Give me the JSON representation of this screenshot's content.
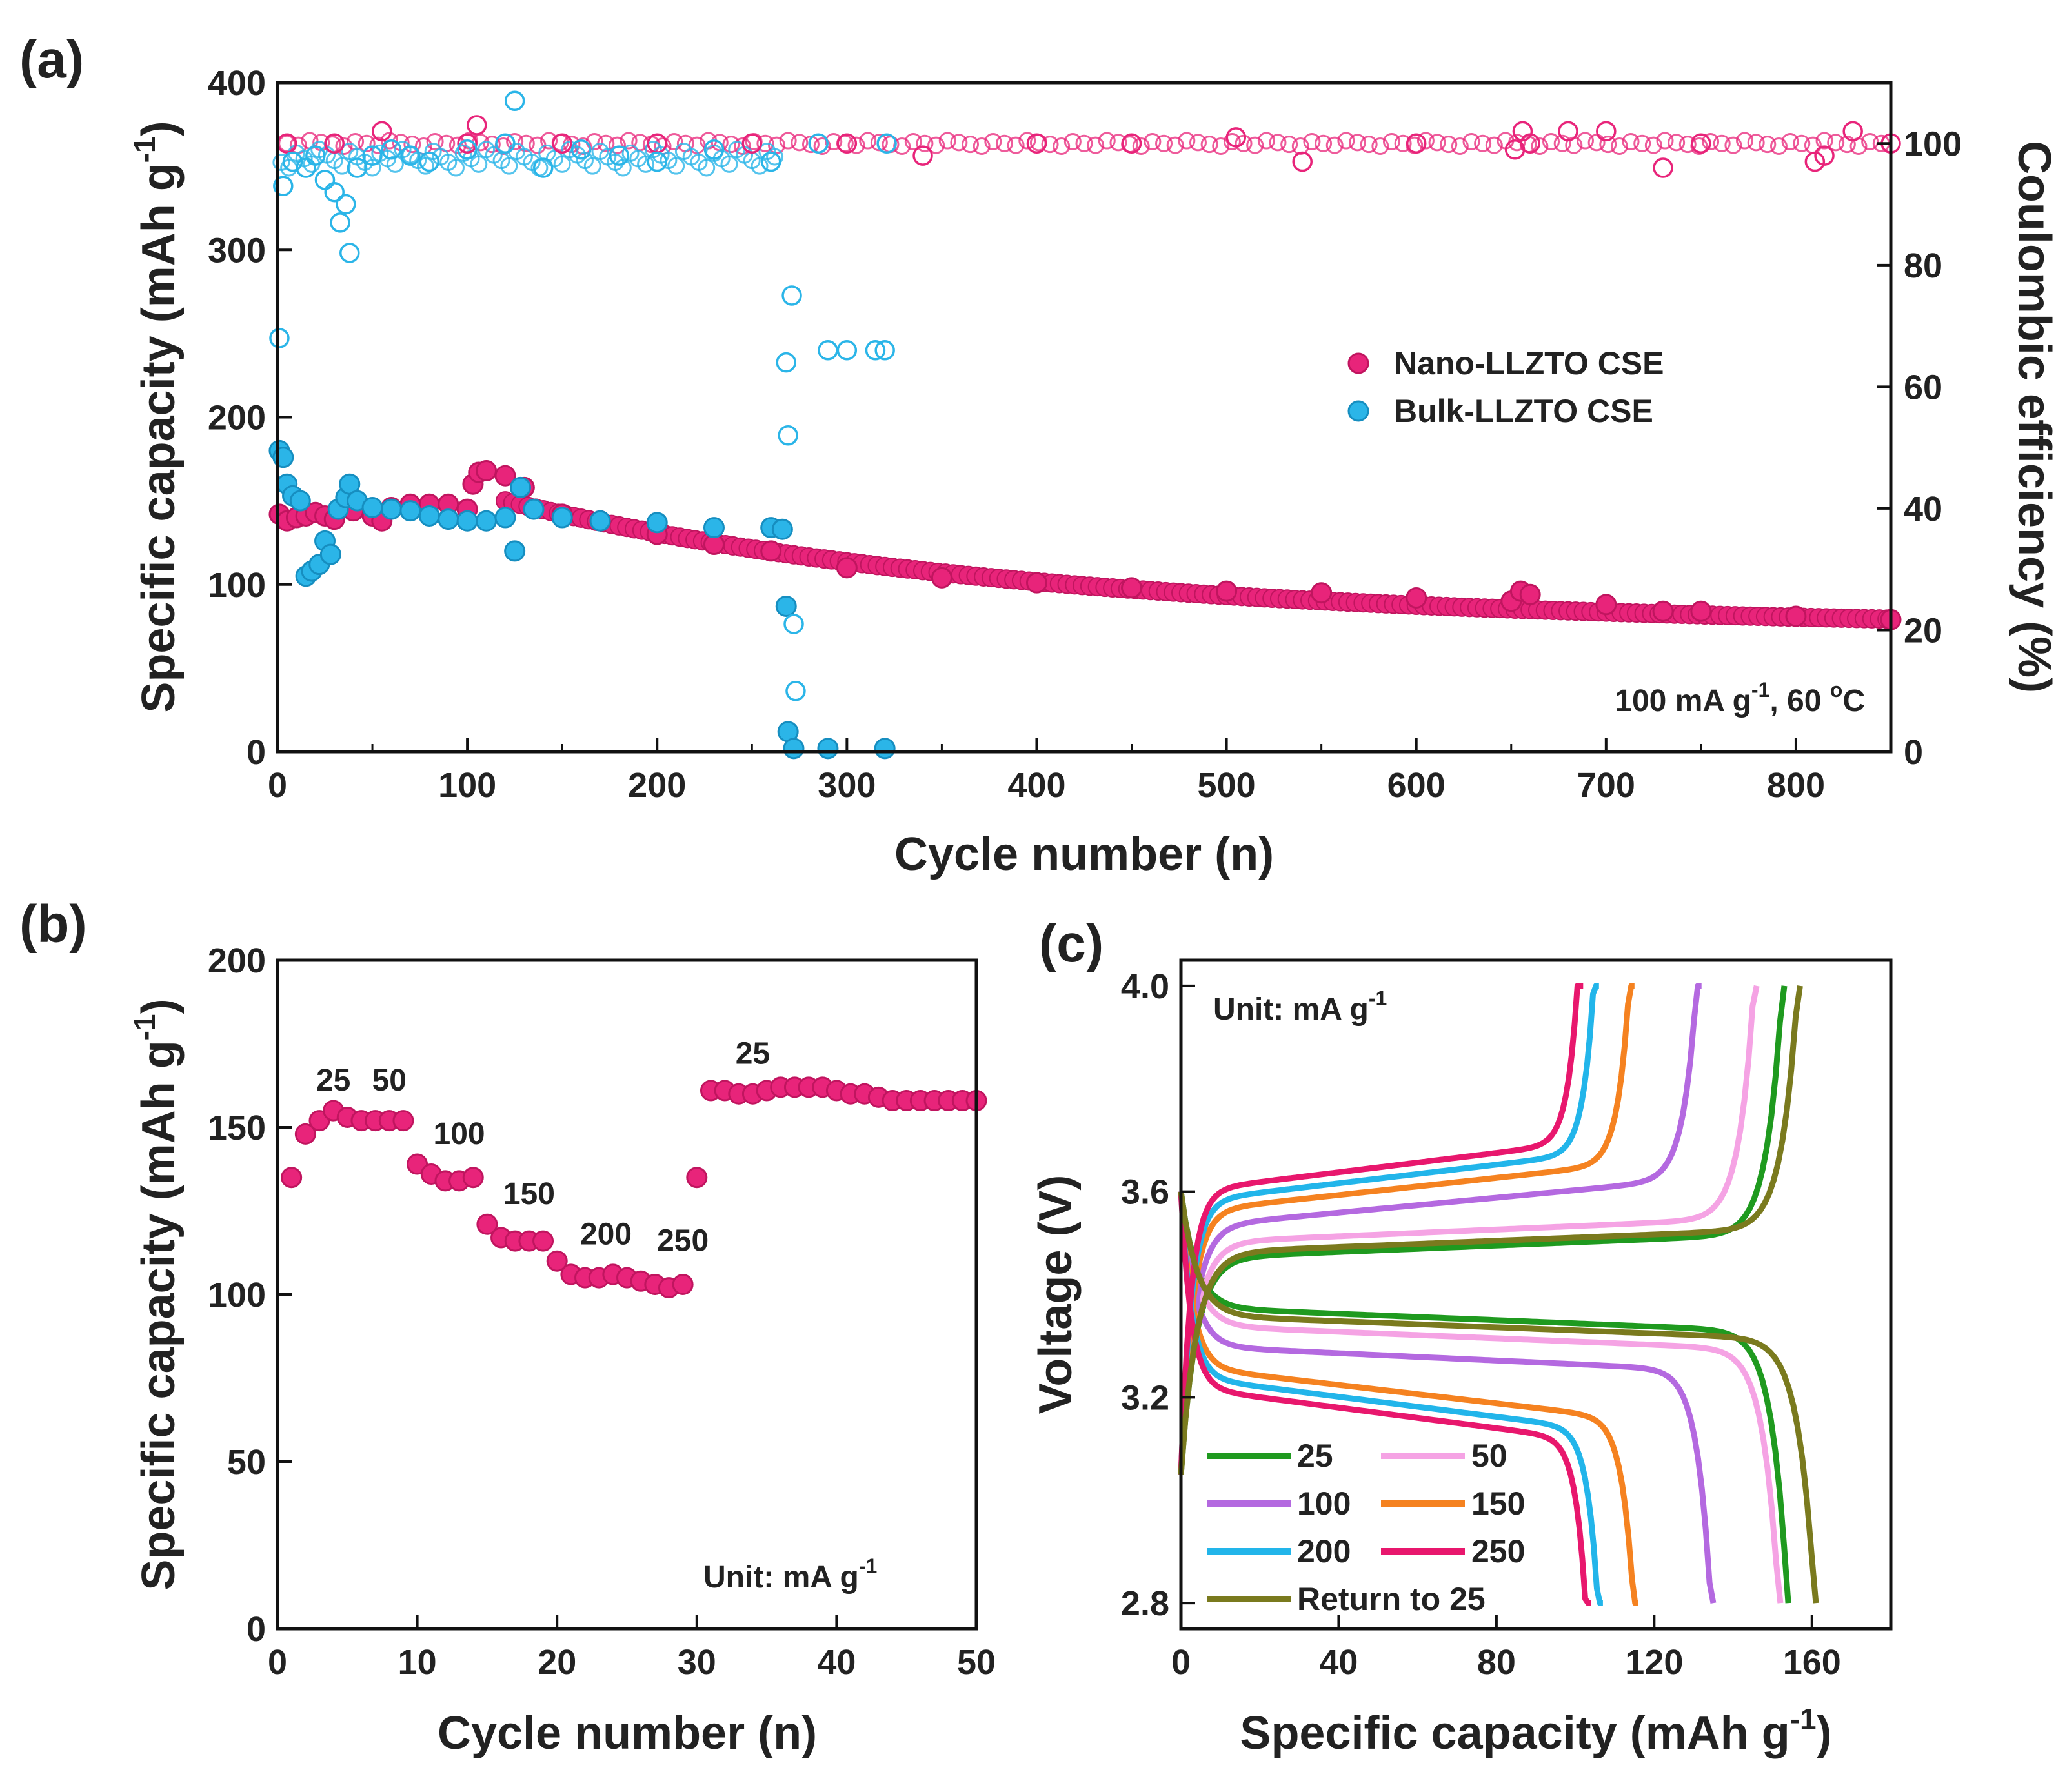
{
  "chart_data": [
    {
      "panel": "(a)",
      "type": "scatter",
      "xlabel": "Cycle number (n)",
      "ylabel": "Specific capacity (mAh g-1)",
      "ylabel_main": "Specific capacity (mAh g",
      "ylabel_sup": "-1",
      "ylabel_close": ")",
      "y2label": "Coulombic efficiency (%)",
      "xlim": [
        0,
        850
      ],
      "ylim": [
        0,
        400
      ],
      "y2lim": [
        0,
        110
      ],
      "xticks": [
        "0",
        "100",
        "200",
        "300",
        "400",
        "500",
        "600",
        "700",
        "800"
      ],
      "yticks": [
        "0",
        "100",
        "200",
        "300",
        "400"
      ],
      "y2ticks": [
        "0",
        "20",
        "40",
        "60",
        "80",
        "100"
      ],
      "legend": [
        "Nano-LLZTO CSE",
        "Bulk-LLZTO CSE"
      ],
      "annotation": "100 mA g-1, 60 °C",
      "annotation_parts": [
        "100 mA g",
        "-1",
        ", 60 ",
        "o",
        "C"
      ],
      "series": [
        {
          "name": "Nano-LLZTO CSE capacity",
          "color": "#e8247a",
          "marker": "filled",
          "axis": "left",
          "points": [
            [
              1,
              142
            ],
            [
              5,
              138
            ],
            [
              10,
              140
            ],
            [
              15,
              141
            ],
            [
              20,
              143
            ],
            [
              25,
              141
            ],
            [
              30,
              139
            ],
            [
              40,
              144
            ],
            [
              50,
              141
            ],
            [
              55,
              138
            ],
            [
              60,
              146
            ],
            [
              70,
              148
            ],
            [
              80,
              148
            ],
            [
              90,
              148
            ],
            [
              100,
              145
            ],
            [
              103,
              160
            ],
            [
              106,
              167
            ],
            [
              110,
              168
            ],
            [
              120,
              165
            ],
            [
              130,
              158
            ],
            [
              150,
              142
            ],
            [
              170,
              138
            ],
            [
              200,
              130
            ],
            [
              230,
              124
            ],
            [
              260,
              120
            ],
            [
              300,
              110
            ],
            [
              350,
              104
            ],
            [
              400,
              101
            ],
            [
              450,
              98
            ],
            [
              500,
              96
            ],
            [
              550,
              95
            ],
            [
              600,
              92
            ],
            [
              650,
              90
            ],
            [
              655,
              96
            ],
            [
              660,
              94
            ],
            [
              700,
              88
            ],
            [
              730,
              84
            ],
            [
              750,
              84
            ],
            [
              800,
              81
            ],
            [
              850,
              79
            ]
          ]
        },
        {
          "name": "Bulk-LLZTO CSE capacity",
          "color": "#2bb5e8",
          "marker": "filled",
          "axis": "left",
          "points": [
            [
              1,
              180
            ],
            [
              3,
              176
            ],
            [
              5,
              160
            ],
            [
              8,
              153
            ],
            [
              12,
              150
            ],
            [
              15,
              105
            ],
            [
              18,
              108
            ],
            [
              22,
              112
            ],
            [
              25,
              126
            ],
            [
              28,
              118
            ],
            [
              32,
              145
            ],
            [
              36,
              152
            ],
            [
              38,
              160
            ],
            [
              42,
              150
            ],
            [
              50,
              146
            ],
            [
              60,
              145
            ],
            [
              70,
              144
            ],
            [
              80,
              141
            ],
            [
              90,
              139
            ],
            [
              100,
              138
            ],
            [
              110,
              138
            ],
            [
              120,
              140
            ],
            [
              125,
              120
            ],
            [
              128,
              158
            ],
            [
              135,
              145
            ],
            [
              150,
              140
            ],
            [
              170,
              138
            ],
            [
              200,
              137
            ],
            [
              230,
              134
            ],
            [
              260,
              134
            ],
            [
              266,
              133
            ],
            [
              268,
              87
            ],
            [
              269,
              12
            ],
            [
              272,
              2
            ],
            [
              290,
              2
            ],
            [
              320,
              2
            ]
          ]
        },
        {
          "name": "Nano-LLZTO CSE efficiency",
          "color": "#e8247a",
          "marker": "open",
          "axis": "right",
          "points": [
            [
              5,
              100
            ],
            [
              30,
              100
            ],
            [
              55,
              102
            ],
            [
              100,
              100
            ],
            [
              105,
              103
            ],
            [
              150,
              100
            ],
            [
              200,
              100
            ],
            [
              250,
              100
            ],
            [
              300,
              100
            ],
            [
              340,
              98
            ],
            [
              400,
              100
            ],
            [
              450,
              100
            ],
            [
              505,
              101
            ],
            [
              540,
              97
            ],
            [
              600,
              100
            ],
            [
              652,
              99
            ],
            [
              656,
              102
            ],
            [
              660,
              100
            ],
            [
              680,
              102
            ],
            [
              700,
              102
            ],
            [
              730,
              96
            ],
            [
              750,
              100
            ],
            [
              810,
              97
            ],
            [
              815,
              98
            ],
            [
              830,
              102
            ],
            [
              850,
              100
            ]
          ]
        },
        {
          "name": "Bulk-LLZTO CSE efficiency",
          "color": "#2bb5e8",
          "marker": "open",
          "axis": "right",
          "points": [
            [
              1,
              68
            ],
            [
              3,
              93
            ],
            [
              8,
              97
            ],
            [
              15,
              96
            ],
            [
              20,
              98
            ],
            [
              25,
              94
            ],
            [
              30,
              92
            ],
            [
              33,
              87
            ],
            [
              36,
              90
            ],
            [
              38,
              82
            ],
            [
              42,
              96
            ],
            [
              50,
              98
            ],
            [
              60,
              99
            ],
            [
              70,
              98
            ],
            [
              80,
              97
            ],
            [
              100,
              99
            ],
            [
              120,
              100
            ],
            [
              125,
              107
            ],
            [
              140,
              96
            ],
            [
              160,
              99
            ],
            [
              180,
              98
            ],
            [
              200,
              97
            ],
            [
              230,
              99
            ],
            [
              260,
              97
            ],
            [
              268,
              64
            ],
            [
              269,
              52
            ],
            [
              271,
              75
            ],
            [
              272,
              21
            ],
            [
              273,
              10
            ],
            [
              285,
              100
            ],
            [
              290,
              66
            ],
            [
              300,
              66
            ],
            [
              315,
              66
            ],
            [
              320,
              66
            ],
            [
              321,
              100
            ]
          ]
        }
      ]
    },
    {
      "panel": "(b)",
      "type": "scatter",
      "xlabel": "Cycle number (n)",
      "ylabel": "Specific capacity (mAh g-1)",
      "ylabel_main": "Specific capacity (mAh g",
      "ylabel_sup": "-1",
      "ylabel_close": ")",
      "xlim": [
        0,
        50
      ],
      "ylim": [
        0,
        200
      ],
      "xticks": [
        "0",
        "10",
        "20",
        "30",
        "40",
        "50"
      ],
      "yticks": [
        "0",
        "50",
        "100",
        "150",
        "200"
      ],
      "unit_label": "Unit: mA g-1",
      "unit_parts": [
        "Unit: mA g",
        "-1"
      ],
      "rate_labels": [
        {
          "text": "25",
          "x": 4,
          "y": 161
        },
        {
          "text": "50",
          "x": 8,
          "y": 161
        },
        {
          "text": "100",
          "x": 13,
          "y": 145
        },
        {
          "text": "150",
          "x": 18,
          "y": 127
        },
        {
          "text": "200",
          "x": 23.5,
          "y": 115
        },
        {
          "text": "250",
          "x": 29,
          "y": 113
        },
        {
          "text": "25",
          "x": 34,
          "y": 169
        }
      ],
      "series": [
        {
          "name": "Nano-LLZTO CSE",
          "color": "#e8247a",
          "x": [
            1,
            2,
            3,
            4,
            5,
            6,
            7,
            8,
            9,
            10,
            11,
            12,
            13,
            14,
            15,
            16,
            17,
            18,
            19,
            20,
            21,
            22,
            23,
            24,
            25,
            26,
            27,
            28,
            29,
            30,
            31,
            32,
            33,
            34,
            35,
            36,
            37,
            38,
            39,
            40,
            41,
            42,
            43,
            44,
            45,
            46,
            47,
            48,
            49,
            50
          ],
          "y": [
            135,
            148,
            152,
            155,
            153,
            152,
            152,
            152,
            152,
            139,
            136,
            134,
            134,
            135,
            121,
            117,
            116,
            116,
            116,
            110,
            106,
            105,
            105,
            106,
            105,
            104,
            103,
            102,
            103,
            135,
            161,
            161,
            160,
            160,
            161,
            162,
            162,
            162,
            162,
            161,
            160,
            160,
            159,
            158,
            158,
            158,
            158,
            158,
            158,
            158
          ]
        }
      ]
    },
    {
      "panel": "(c)",
      "type": "line",
      "xlabel": "Specific capacity (mAh g-1)",
      "xlabel_main": "Specific capacity (mAh g",
      "xlabel_sup": "-1",
      "xlabel_close": ")",
      "ylabel": "Voltage (V)",
      "xlim": [
        0,
        180
      ],
      "ylim": [
        2.75,
        4.05
      ],
      "xticks": [
        "0",
        "40",
        "80",
        "120",
        "160"
      ],
      "yticks": [
        "2.8",
        "3.2",
        "3.6",
        "4.0"
      ],
      "unit_label": "Unit: mA g-1",
      "unit_parts": [
        "Unit: mA g",
        "-1"
      ],
      "series": [
        {
          "name": "25",
          "color": "#1f9a1f",
          "charge_capacity": 153,
          "discharge_capacity": 154,
          "charge_plateau": 3.47,
          "discharge_plateau": 3.375
        },
        {
          "name": "50",
          "color": "#f5a3e4",
          "charge_capacity": 146,
          "discharge_capacity": 152,
          "charge_plateau": 3.5,
          "discharge_plateau": 3.34
        },
        {
          "name": "100",
          "color": "#b469e0",
          "charge_capacity": 132,
          "discharge_capacity": 135,
          "charge_plateau": 3.53,
          "discharge_plateau": 3.3
        },
        {
          "name": "150",
          "color": "#f58220",
          "charge_capacity": 115,
          "discharge_capacity": 116,
          "charge_plateau": 3.56,
          "discharge_plateau": 3.26
        },
        {
          "name": "200",
          "color": "#22b5ea",
          "charge_capacity": 106,
          "discharge_capacity": 107,
          "charge_plateau": 3.58,
          "discharge_plateau": 3.24
        },
        {
          "name": "250",
          "color": "#e8176d",
          "charge_capacity": 102,
          "discharge_capacity": 104,
          "charge_plateau": 3.6,
          "discharge_plateau": 3.22
        },
        {
          "name": "Return to 25",
          "color": "#7a7a1e",
          "charge_capacity": 157,
          "discharge_capacity": 161,
          "charge_plateau": 3.48,
          "discharge_plateau": 3.36
        }
      ]
    }
  ]
}
